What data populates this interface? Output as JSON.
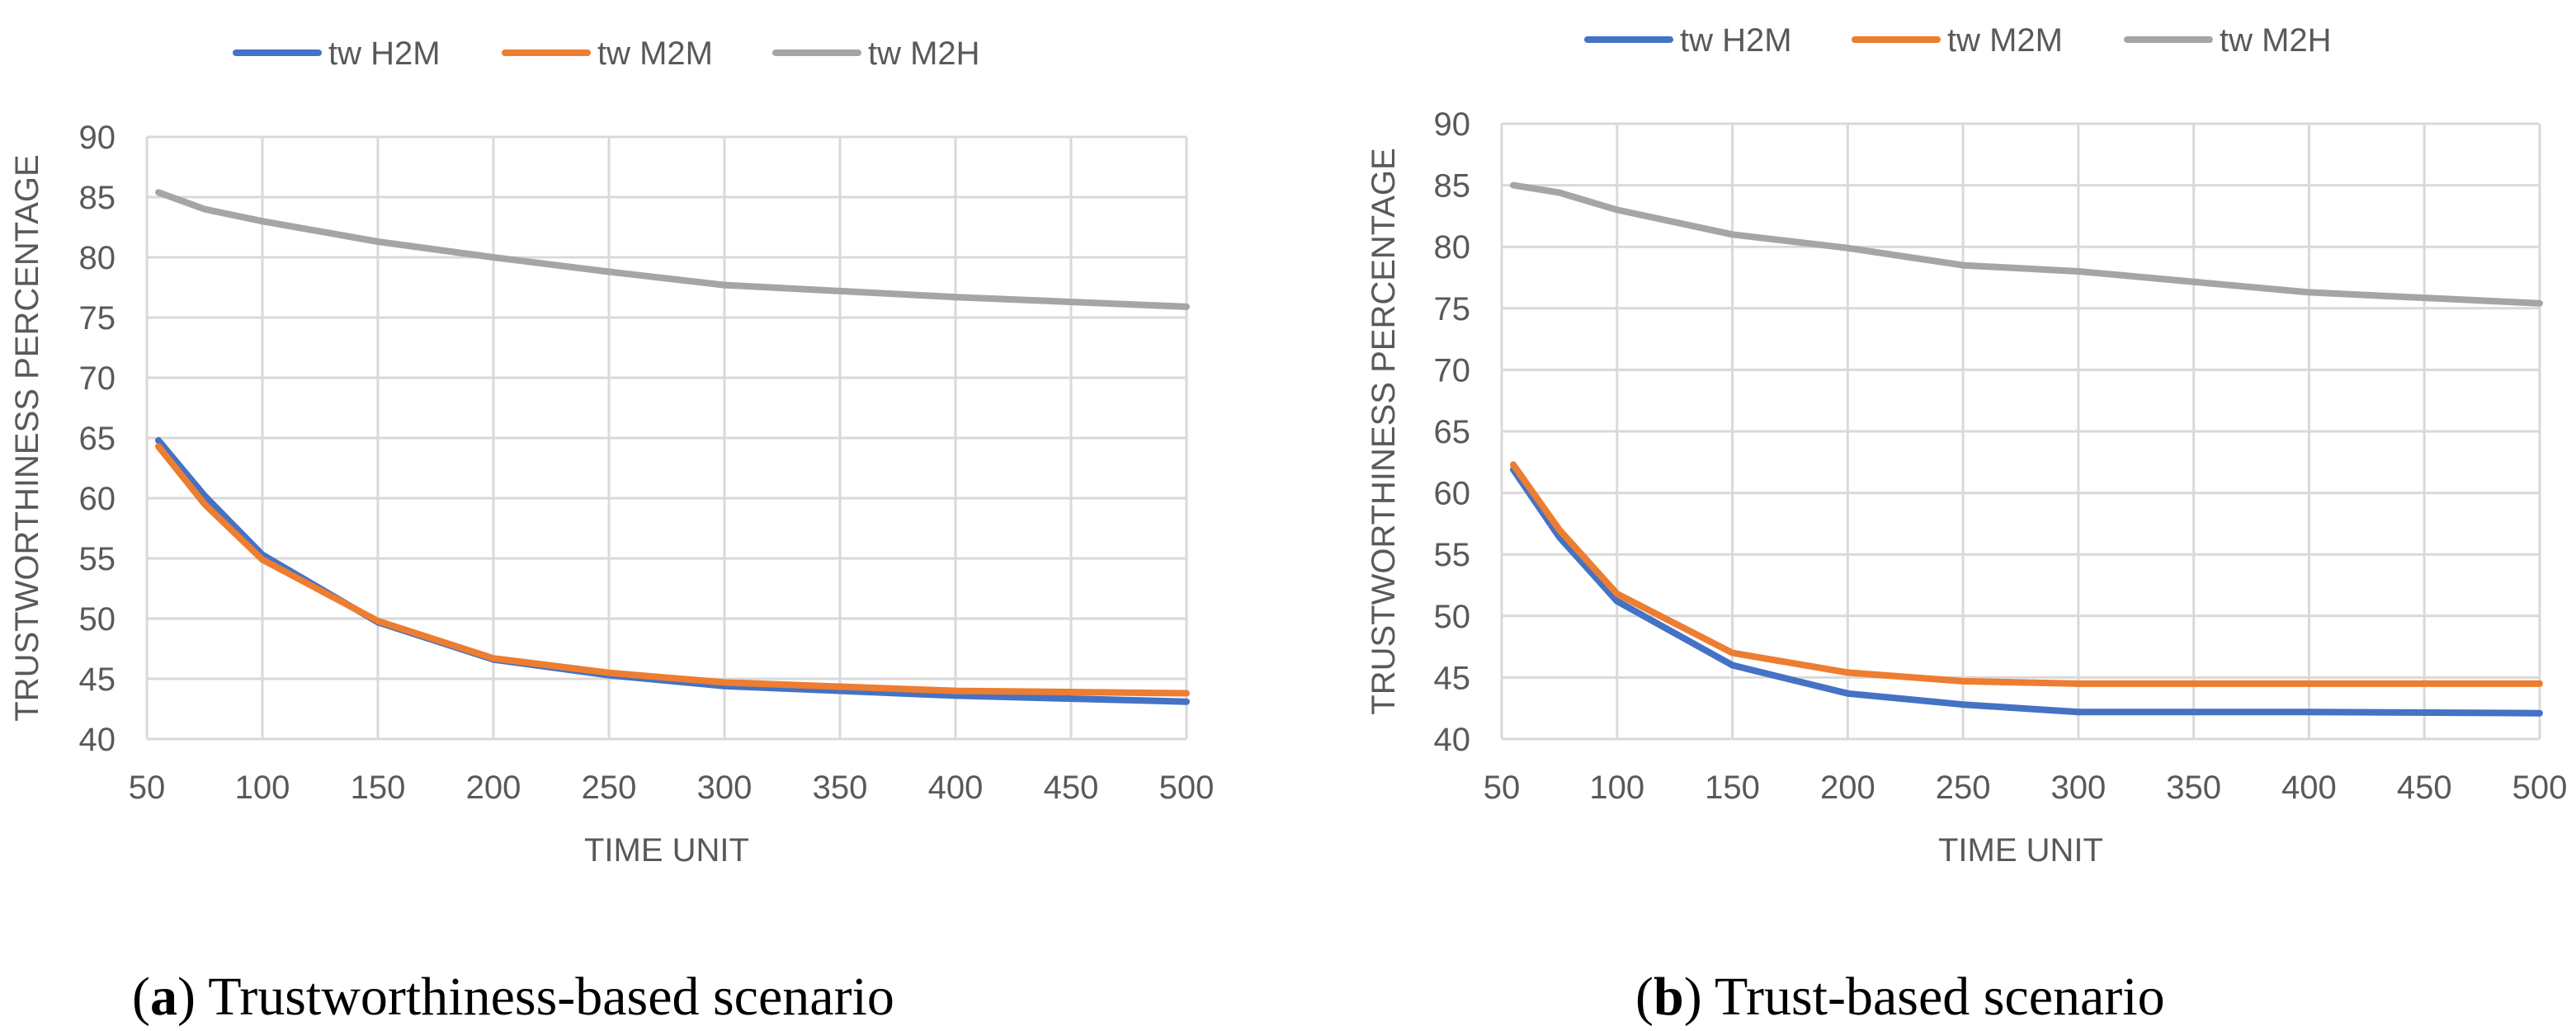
{
  "chart_data": [
    {
      "type": "line",
      "title": "",
      "xlabel": "TIME UNIT",
      "ylabel": "TRUSTWORTHINESS PERCENTAGE",
      "xlim": [
        50,
        500
      ],
      "ylim": [
        40,
        90
      ],
      "x_ticks": [
        50,
        100,
        150,
        200,
        250,
        300,
        350,
        400,
        450,
        500
      ],
      "y_ticks": [
        40,
        45,
        50,
        55,
        60,
        65,
        70,
        75,
        80,
        85,
        90
      ],
      "grid": true,
      "legend_position": "top",
      "x": [
        55,
        75,
        100,
        150,
        200,
        250,
        300,
        400,
        500
      ],
      "series": [
        {
          "name": "tw H2M",
          "color": "#4472c4",
          "values": [
            64.8,
            60.2,
            55.3,
            49.7,
            46.6,
            45.3,
            44.4,
            43.6,
            43.1
          ]
        },
        {
          "name": "tw M2M",
          "color": "#ed7d31",
          "values": [
            64.3,
            59.5,
            54.9,
            49.8,
            46.7,
            45.5,
            44.7,
            44.0,
            43.8
          ]
        },
        {
          "name": "tw M2H",
          "color": "#a5a5a5",
          "values": [
            85.4,
            84.0,
            83.0,
            81.3,
            80.0,
            78.8,
            77.7,
            76.7,
            75.9
          ]
        }
      ],
      "caption": {
        "letter": "a",
        "text": " Trustworthiness-based scenario"
      }
    },
    {
      "type": "line",
      "title": "",
      "xlabel": "TIME UNIT",
      "ylabel": "TRUSTWORTHINESS PERCENTAGE",
      "xlim": [
        50,
        500
      ],
      "ylim": [
        40,
        90
      ],
      "x_ticks": [
        50,
        100,
        150,
        200,
        250,
        300,
        350,
        400,
        450,
        500
      ],
      "y_ticks": [
        40,
        45,
        50,
        55,
        60,
        65,
        70,
        75,
        80,
        85,
        90
      ],
      "grid": true,
      "legend_position": "top",
      "x": [
        55,
        75,
        100,
        150,
        200,
        250,
        300,
        400,
        500
      ],
      "series": [
        {
          "name": "tw H2M",
          "color": "#4472c4",
          "values": [
            61.9,
            56.4,
            51.2,
            46.0,
            43.7,
            42.8,
            42.2,
            42.2,
            42.1
          ]
        },
        {
          "name": "tw M2M",
          "color": "#ed7d31",
          "values": [
            62.3,
            57.0,
            51.8,
            47.0,
            45.4,
            44.7,
            44.5,
            44.5,
            44.5
          ]
        },
        {
          "name": "tw M2H",
          "color": "#a5a5a5",
          "values": [
            85.0,
            84.4,
            83.0,
            81.0,
            79.9,
            78.5,
            78.0,
            76.3,
            75.4
          ]
        }
      ],
      "caption": {
        "letter": "b",
        "text": " Trust-based scenario"
      }
    }
  ]
}
